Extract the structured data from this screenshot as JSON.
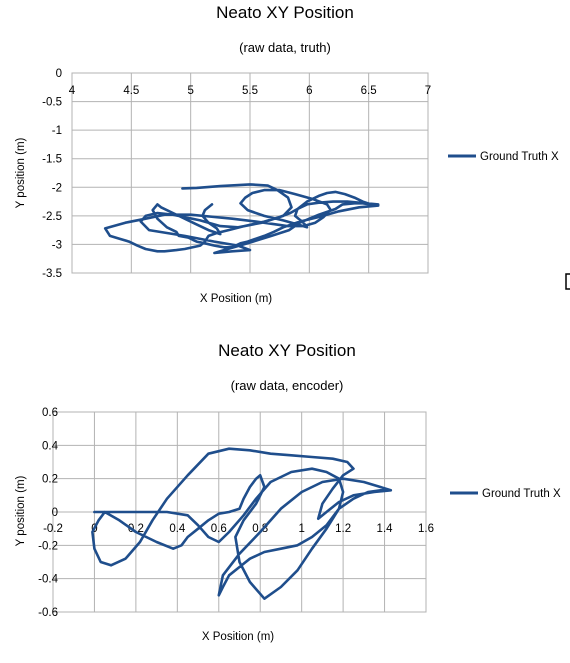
{
  "charts": [
    {
      "title": "Neato XY Position",
      "subtitle": "(raw data, truth)",
      "xlabel": "X Position (m)",
      "ylabel": "Y position (m)",
      "legend": "Ground Truth X",
      "x_ticks": [
        "4",
        "4.5",
        "5",
        "5.5",
        "6",
        "6.5",
        "7"
      ],
      "y_ticks": [
        "0",
        "-0.5",
        "-1",
        "-1.5",
        "-2",
        "-2.5",
        "-3",
        "-3.5"
      ]
    },
    {
      "title": "Neato XY Position",
      "subtitle": "(raw data, encoder)",
      "xlabel": "X Position (m)",
      "ylabel": "Y position (m)",
      "legend": "Ground Truth X",
      "x_ticks": [
        "-0.2",
        "0",
        "0.2",
        "0.4",
        "0.6",
        "0.8",
        "1",
        "1.2",
        "1.4",
        "1.6"
      ],
      "y_ticks": [
        "0.6",
        "0.4",
        "0.2",
        "0",
        "-0.2",
        "-0.4",
        "-0.6"
      ]
    }
  ],
  "line_color": "#1f4e8c",
  "chart_data": [
    {
      "type": "line",
      "title": "Neato XY Position",
      "subtitle": "(raw data, truth)",
      "xlabel": "X Position (m)",
      "ylabel": "Y position (m)",
      "xlim": [
        4,
        7
      ],
      "ylim": [
        -3.5,
        0
      ],
      "x_axis_at_top": true,
      "grid": true,
      "legend_position": "right",
      "series": [
        {
          "name": "Ground Truth X",
          "x": [
            4.93,
            5.05,
            5.25,
            5.5,
            5.65,
            5.73,
            5.82,
            5.85,
            5.78,
            5.6,
            5.4,
            5.25,
            5.08,
            4.85,
            4.72,
            4.62,
            4.58,
            4.65,
            4.95,
            5.2,
            5.4,
            5.5,
            5.35,
            5.2,
            5.28,
            5.48,
            5.68,
            5.83,
            5.92,
            6.08,
            6.22,
            6.28,
            6.38,
            6.45,
            6.52,
            6.58,
            6.42,
            6.32,
            6.2,
            6.08,
            5.98,
            5.9,
            5.84,
            5.75,
            5.62,
            5.45,
            5.32,
            5.22,
            5.15,
            5.12,
            5.08,
            4.95,
            4.88,
            4.78,
            4.72,
            4.62,
            4.55,
            4.48,
            4.4,
            4.32,
            4.28,
            4.45,
            4.62,
            4.78,
            5.0,
            5.2,
            5.35,
            5.55,
            5.72,
            5.82,
            5.95,
            6.05,
            6.12,
            6.18,
            6.15,
            6.02,
            5.88,
            5.75,
            5.62,
            5.52,
            5.46,
            5.42,
            5.48,
            5.62,
            5.78,
            5.9,
            5.98,
            5.95,
            5.88,
            5.9,
            5.98,
            6.08,
            6.15,
            6.22,
            6.3,
            6.38,
            6.45,
            6.52,
            6.58,
            6.42,
            6.25,
            6.08,
            5.92,
            5.78,
            5.7,
            5.62,
            5.55,
            5.48,
            5.42,
            5.38,
            5.35,
            5.28,
            5.2,
            5.12,
            5.05,
            5.02,
            5.0,
            4.98,
            4.9,
            4.88,
            4.8,
            4.72,
            4.68,
            4.72,
            4.75,
            4.85,
            4.95,
            5.05,
            5.15,
            5.25,
            5.22,
            5.15,
            5.1,
            5.12,
            5.18
          ],
          "y": [
            -2.02,
            -2.01,
            -1.98,
            -1.95,
            -1.97,
            -2.05,
            -2.18,
            -2.35,
            -2.5,
            -2.62,
            -2.7,
            -2.68,
            -2.58,
            -2.48,
            -2.45,
            -2.5,
            -2.6,
            -2.75,
            -2.85,
            -2.95,
            -3.02,
            -3.1,
            -3.12,
            -3.15,
            -3.1,
            -2.98,
            -2.85,
            -2.75,
            -2.62,
            -2.48,
            -2.38,
            -2.3,
            -2.28,
            -2.28,
            -2.3,
            -2.3,
            -2.27,
            -2.25,
            -2.25,
            -2.27,
            -2.3,
            -2.38,
            -2.45,
            -2.52,
            -2.6,
            -2.68,
            -2.75,
            -2.8,
            -2.85,
            -2.95,
            -3.02,
            -3.08,
            -3.1,
            -3.12,
            -3.12,
            -3.08,
            -3.02,
            -2.95,
            -2.9,
            -2.85,
            -2.72,
            -2.62,
            -2.55,
            -2.48,
            -2.48,
            -2.52,
            -2.55,
            -2.6,
            -2.65,
            -2.68,
            -2.68,
            -2.62,
            -2.52,
            -2.4,
            -2.3,
            -2.2,
            -2.12,
            -2.05,
            -2.05,
            -2.1,
            -2.18,
            -2.28,
            -2.4,
            -2.5,
            -2.58,
            -2.65,
            -2.7,
            -2.62,
            -2.5,
            -2.38,
            -2.25,
            -2.15,
            -2.1,
            -2.08,
            -2.12,
            -2.18,
            -2.25,
            -2.3,
            -2.32,
            -2.35,
            -2.42,
            -2.52,
            -2.6,
            -2.7,
            -2.78,
            -2.85,
            -2.9,
            -2.95,
            -2.98,
            -3.02,
            -3.05,
            -3.05,
            -3.02,
            -2.98,
            -2.95,
            -2.92,
            -2.9,
            -2.88,
            -2.85,
            -2.78,
            -2.7,
            -2.55,
            -2.4,
            -2.3,
            -2.35,
            -2.45,
            -2.55,
            -2.65,
            -2.75,
            -2.82,
            -2.72,
            -2.62,
            -2.5,
            -2.4,
            -2.3
          ]
        }
      ]
    },
    {
      "type": "line",
      "title": "Neato XY Position",
      "subtitle": "(raw data, encoder)",
      "xlabel": "X Position (m)",
      "ylabel": "Y position (m)",
      "xlim": [
        -0.2,
        1.6
      ],
      "ylim": [
        -0.6,
        0.6
      ],
      "grid": true,
      "legend_position": "right",
      "series": [
        {
          "name": "Ground Truth X",
          "x": [
            0.0,
            0.1,
            0.2,
            0.35,
            0.45,
            0.5,
            0.55,
            0.6,
            0.65,
            0.72,
            0.78,
            0.85,
            0.95,
            1.05,
            1.12,
            1.18,
            1.2,
            1.18,
            1.12,
            1.05,
            0.98,
            0.9,
            0.82,
            0.75,
            0.7,
            0.65,
            0.62,
            0.6,
            0.62,
            0.7,
            0.8,
            0.9,
            1.0,
            1.1,
            1.2,
            1.3,
            1.38,
            1.43,
            1.35,
            1.25,
            1.18,
            1.12,
            1.08,
            1.1,
            1.15,
            1.2,
            1.25,
            1.22,
            1.15,
            1.05,
            0.95,
            0.85,
            0.75,
            0.65,
            0.55,
            0.45,
            0.35,
            0.28,
            0.22,
            0.15,
            0.08,
            0.03,
            0.0,
            -0.01,
            0.02,
            0.05,
            0.12,
            0.2,
            0.3,
            0.38,
            0.42,
            0.45,
            0.5,
            0.55,
            0.6,
            0.65,
            0.7,
            0.72,
            0.75,
            0.78,
            0.8,
            0.82,
            0.78,
            0.72,
            0.68,
            0.7,
            0.75,
            0.82,
            0.9,
            0.98,
            1.05,
            1.12,
            1.18,
            1.25,
            1.32,
            1.38,
            1.43
          ],
          "y": [
            0.0,
            0.0,
            0.0,
            0.0,
            -0.02,
            -0.08,
            -0.15,
            -0.18,
            -0.12,
            -0.02,
            0.08,
            0.18,
            0.24,
            0.26,
            0.24,
            0.2,
            0.12,
            0.02,
            -0.08,
            -0.15,
            -0.2,
            -0.22,
            -0.24,
            -0.28,
            -0.33,
            -0.38,
            -0.45,
            -0.5,
            -0.38,
            -0.25,
            -0.12,
            0.02,
            0.12,
            0.18,
            0.2,
            0.18,
            0.15,
            0.13,
            0.12,
            0.1,
            0.06,
            0.0,
            -0.04,
            0.05,
            0.14,
            0.22,
            0.26,
            0.3,
            0.32,
            0.33,
            0.34,
            0.35,
            0.37,
            0.38,
            0.35,
            0.22,
            0.08,
            -0.05,
            -0.18,
            -0.28,
            -0.32,
            -0.3,
            -0.22,
            -0.12,
            -0.05,
            0.0,
            -0.05,
            -0.12,
            -0.18,
            -0.22,
            -0.2,
            -0.15,
            -0.1,
            -0.05,
            -0.01,
            0.0,
            0.02,
            0.08,
            0.15,
            0.2,
            0.22,
            0.15,
            0.05,
            -0.05,
            -0.15,
            -0.3,
            -0.42,
            -0.52,
            -0.45,
            -0.35,
            -0.22,
            -0.1,
            0.02,
            0.08,
            0.12,
            0.13,
            0.13
          ]
        }
      ]
    }
  ]
}
